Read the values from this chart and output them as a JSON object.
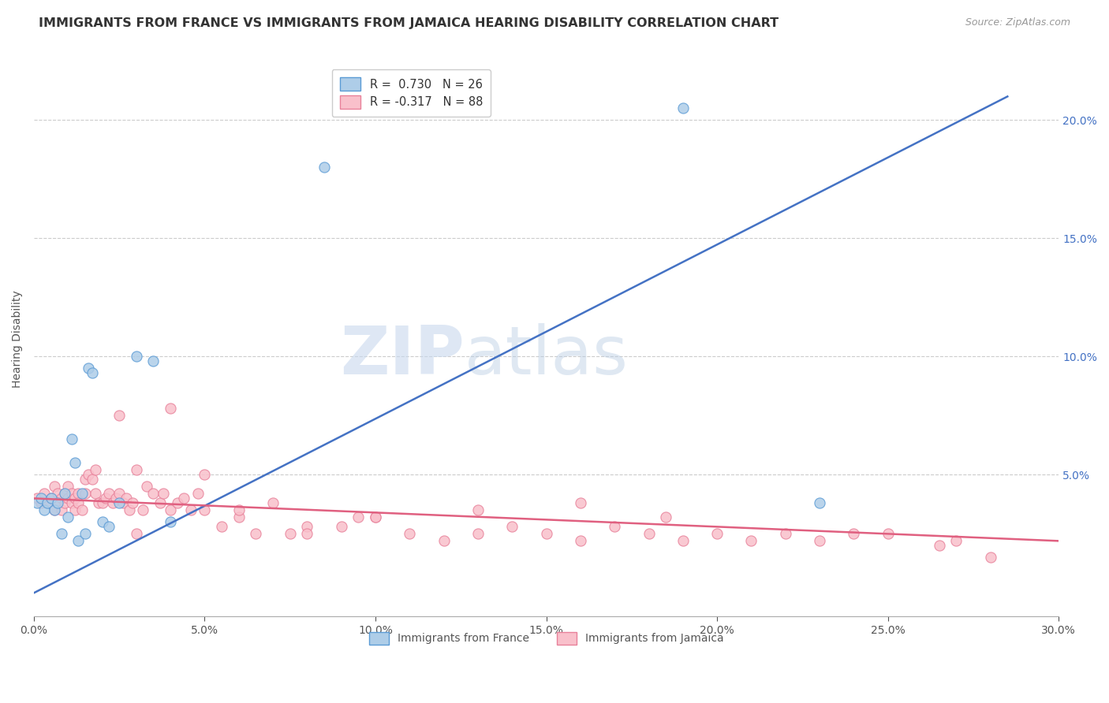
{
  "title": "IMMIGRANTS FROM FRANCE VS IMMIGRANTS FROM JAMAICA HEARING DISABILITY CORRELATION CHART",
  "source": "Source: ZipAtlas.com",
  "ylabel": "Hearing Disability",
  "xlim": [
    0.0,
    0.3
  ],
  "ylim": [
    -0.01,
    0.225
  ],
  "xtick_labels": [
    "0.0%",
    "",
    "",
    "",
    "",
    "",
    "5.0%",
    "",
    "",
    "",
    "",
    "",
    "10.0%",
    "",
    "",
    "",
    "",
    "",
    "15.0%",
    "",
    "",
    "",
    "",
    "",
    "20.0%",
    "",
    "",
    "",
    "",
    "",
    "25.0%",
    "",
    "",
    "",
    "",
    "",
    "30.0%"
  ],
  "xtick_vals": [
    0.0,
    0.05,
    0.1,
    0.15,
    0.2,
    0.25,
    0.3
  ],
  "xtick_display": [
    "0.0%",
    "5.0%",
    "10.0%",
    "15.0%",
    "20.0%",
    "25.0%",
    "30.0%"
  ],
  "ytick_labels_right": [
    "5.0%",
    "10.0%",
    "15.0%",
    "20.0%"
  ],
  "ytick_vals_right": [
    0.05,
    0.1,
    0.15,
    0.2
  ],
  "blue_color": "#aecde8",
  "pink_color": "#f9c0cb",
  "blue_edge_color": "#5b9bd5",
  "pink_edge_color": "#e8819a",
  "blue_line_color": "#4472c4",
  "pink_line_color": "#e06080",
  "grid_color": "#cccccc",
  "watermark_zip": "ZIP",
  "watermark_atlas": "atlas",
  "legend_line1": "R =  0.730   N = 26",
  "legend_line2": "R = -0.317   N = 88",
  "label_blue": "Immigrants from France",
  "label_pink": "Immigrants from Jamaica",
  "france_x": [
    0.001,
    0.002,
    0.003,
    0.004,
    0.005,
    0.006,
    0.007,
    0.008,
    0.009,
    0.01,
    0.011,
    0.012,
    0.013,
    0.014,
    0.015,
    0.016,
    0.017,
    0.02,
    0.022,
    0.025,
    0.03,
    0.035,
    0.04,
    0.085,
    0.19,
    0.23
  ],
  "france_y": [
    0.038,
    0.04,
    0.035,
    0.038,
    0.04,
    0.035,
    0.038,
    0.025,
    0.042,
    0.032,
    0.065,
    0.055,
    0.022,
    0.042,
    0.025,
    0.095,
    0.093,
    0.03,
    0.028,
    0.038,
    0.1,
    0.098,
    0.03,
    0.18,
    0.205,
    0.038
  ],
  "jamaica_x": [
    0.001,
    0.002,
    0.003,
    0.004,
    0.005,
    0.006,
    0.006,
    0.007,
    0.007,
    0.008,
    0.008,
    0.009,
    0.009,
    0.01,
    0.01,
    0.011,
    0.011,
    0.012,
    0.012,
    0.013,
    0.013,
    0.014,
    0.015,
    0.015,
    0.016,
    0.017,
    0.018,
    0.018,
    0.019,
    0.02,
    0.021,
    0.022,
    0.023,
    0.024,
    0.025,
    0.026,
    0.027,
    0.028,
    0.029,
    0.03,
    0.032,
    0.033,
    0.035,
    0.037,
    0.038,
    0.04,
    0.042,
    0.044,
    0.046,
    0.048,
    0.05,
    0.055,
    0.06,
    0.065,
    0.07,
    0.075,
    0.08,
    0.09,
    0.095,
    0.1,
    0.11,
    0.12,
    0.13,
    0.14,
    0.15,
    0.16,
    0.17,
    0.18,
    0.19,
    0.2,
    0.21,
    0.22,
    0.23,
    0.24,
    0.25,
    0.265,
    0.27,
    0.28,
    0.025,
    0.03,
    0.04,
    0.05,
    0.06,
    0.08,
    0.1,
    0.13,
    0.16,
    0.185
  ],
  "jamaica_y": [
    0.04,
    0.038,
    0.042,
    0.038,
    0.04,
    0.045,
    0.035,
    0.042,
    0.038,
    0.04,
    0.035,
    0.042,
    0.038,
    0.04,
    0.045,
    0.038,
    0.042,
    0.04,
    0.035,
    0.042,
    0.038,
    0.035,
    0.042,
    0.048,
    0.05,
    0.048,
    0.052,
    0.042,
    0.038,
    0.038,
    0.04,
    0.042,
    0.038,
    0.04,
    0.042,
    0.038,
    0.04,
    0.035,
    0.038,
    0.025,
    0.035,
    0.045,
    0.042,
    0.038,
    0.042,
    0.035,
    0.038,
    0.04,
    0.035,
    0.042,
    0.035,
    0.028,
    0.032,
    0.025,
    0.038,
    0.025,
    0.028,
    0.028,
    0.032,
    0.032,
    0.025,
    0.022,
    0.025,
    0.028,
    0.025,
    0.022,
    0.028,
    0.025,
    0.022,
    0.025,
    0.022,
    0.025,
    0.022,
    0.025,
    0.025,
    0.02,
    0.022,
    0.015,
    0.075,
    0.052,
    0.078,
    0.05,
    0.035,
    0.025,
    0.032,
    0.035,
    0.038,
    0.032
  ],
  "blue_trend_x": [
    0.0,
    0.285
  ],
  "blue_trend_y": [
    0.0,
    0.21
  ],
  "pink_trend_x": [
    0.0,
    0.3
  ],
  "pink_trend_y": [
    0.04,
    0.022
  ],
  "title_fontsize": 11.5,
  "axis_label_fontsize": 10,
  "tick_fontsize": 10,
  "background_color": "#ffffff"
}
